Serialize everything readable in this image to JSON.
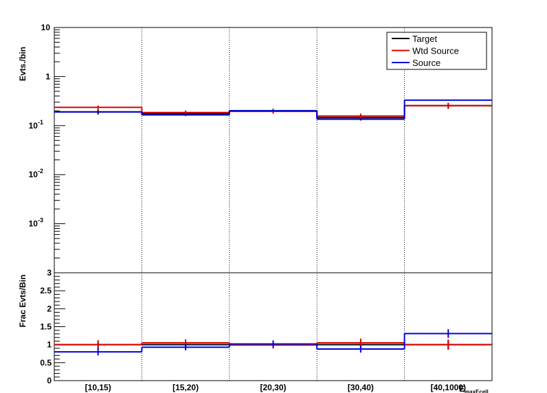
{
  "chart_data": [
    {
      "type": "histogram-step",
      "categories": [
        "[10,15)",
        "[15,20)",
        "[20,30)",
        "[30,40)",
        "[40,1000)"
      ],
      "ylabel": "Evts./bin",
      "xlabel": "E_{maxEcell}",
      "xlabel_main": "E",
      "xlabel_sub": "maxEcell",
      "yscale": "log",
      "ylim": [
        0.0001,
        10
      ],
      "yticks": [
        {
          "value": 10,
          "label": "10"
        },
        {
          "value": 1,
          "label": "1"
        },
        {
          "value": 0.1,
          "label": "10",
          "exp": "-1"
        },
        {
          "value": 0.01,
          "label": "10",
          "exp": "-2"
        },
        {
          "value": 0.001,
          "label": "10",
          "exp": "-3"
        }
      ],
      "legend_placement": "top-right",
      "series": [
        {
          "name": "Target",
          "color": "#000000",
          "values": [
            0.19,
            0.175,
            0.2,
            0.145,
            0.255
          ],
          "errors": [
            0.022,
            0.018,
            0.02,
            0.018,
            0.035
          ]
        },
        {
          "name": "Wtd Source",
          "color": "#dd0000",
          "values": [
            0.235,
            0.185,
            0.195,
            0.157,
            0.255
          ],
          "errors": [
            0.022,
            0.018,
            0.02,
            0.018,
            0.035
          ]
        },
        {
          "name": "Source",
          "color": "#0000dd",
          "values": [
            0.19,
            0.165,
            0.2,
            0.135,
            0.33
          ],
          "errors": [
            0,
            0,
            0,
            0,
            0
          ]
        }
      ]
    },
    {
      "type": "histogram-step",
      "categories": [
        "[10,15)",
        "[15,20)",
        "[20,30)",
        "[30,40)",
        "[40,1000)"
      ],
      "ylabel": "Frac Evts/Bin",
      "ylim": [
        0,
        3
      ],
      "yticks": [
        {
          "value": 0,
          "label": "0"
        },
        {
          "value": 0.5,
          "label": "0.5"
        },
        {
          "value": 1,
          "label": "1"
        },
        {
          "value": 1.5,
          "label": "1.5"
        },
        {
          "value": 2,
          "label": "2"
        },
        {
          "value": 2.5,
          "label": "2.5"
        },
        {
          "value": 3,
          "label": "3"
        }
      ],
      "series": [
        {
          "name": "Target",
          "color": "#000000",
          "values": [
            1.0,
            1.0,
            1.0,
            1.0,
            1.0
          ],
          "errors": [
            0.12,
            0.1,
            0.1,
            0.12,
            0.14
          ]
        },
        {
          "name": "Wtd Source",
          "color": "#dd0000",
          "values": [
            1.0,
            1.05,
            0.99,
            1.05,
            1.0
          ],
          "errors": [
            0.12,
            0.1,
            0.1,
            0.12,
            0.14
          ]
        },
        {
          "name": "Source",
          "color": "#0000dd",
          "values": [
            0.8,
            0.93,
            1.02,
            0.88,
            1.31
          ],
          "errors": [
            0.1,
            0.09,
            0.1,
            0.1,
            0.12
          ]
        }
      ]
    }
  ]
}
